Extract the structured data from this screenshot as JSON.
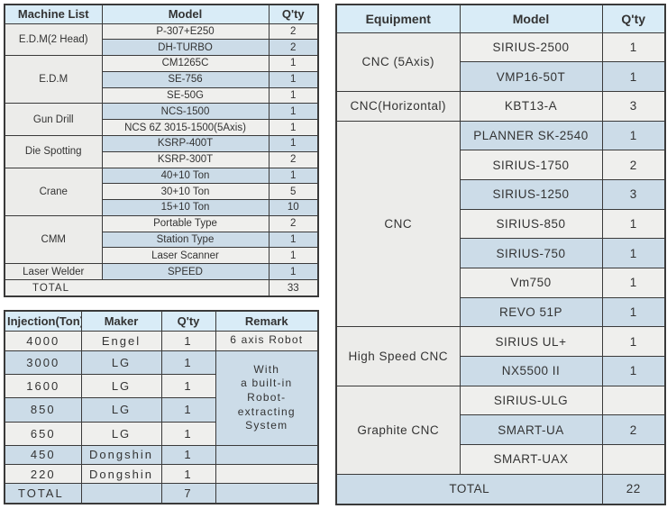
{
  "colors": {
    "page_bg": "#ffffff",
    "header_bg": "#d9ecf7",
    "row_gray": "#efefed",
    "row_blue": "#ccdce8",
    "group_bg": "#ececea",
    "border": "#3a3a3a",
    "text": "#333333"
  },
  "machine_list_table": {
    "headers": [
      "Machine List",
      "Model",
      "Q'ty"
    ],
    "groups": [
      {
        "name": "E.D.M(2 Head)",
        "rows": [
          [
            "P-307+E250",
            "2"
          ],
          [
            "DH-TURBO",
            "2"
          ]
        ]
      },
      {
        "name": "E.D.M",
        "rows": [
          [
            "CM1265C",
            "1"
          ],
          [
            "SE-756",
            "1"
          ],
          [
            "SE-50G",
            "1"
          ]
        ]
      },
      {
        "name": "Gun Drill",
        "rows": [
          [
            "NCS-1500",
            "1"
          ],
          [
            "NCS 6Z 3015-1500(5Axis)",
            "1"
          ]
        ]
      },
      {
        "name": "Die Spotting",
        "rows": [
          [
            "KSRP-400T",
            "1"
          ],
          [
            "KSRP-300T",
            "2"
          ]
        ]
      },
      {
        "name": "Crane",
        "rows": [
          [
            "40+10 Ton",
            "1"
          ],
          [
            "30+10 Ton",
            "5"
          ],
          [
            "15+10 Ton",
            "10"
          ]
        ]
      },
      {
        "name": "CMM",
        "rows": [
          [
            "Portable Type",
            "2"
          ],
          [
            "Station Type",
            "1"
          ],
          [
            "Laser Scanner",
            "1"
          ]
        ]
      },
      {
        "name": "Laser Welder",
        "rows": [
          [
            "SPEED",
            "1"
          ]
        ]
      }
    ],
    "total_label": "TOTAL",
    "total_qty": "33"
  },
  "injection_table": {
    "headers": [
      "Injection(Ton)",
      "Maker",
      "Q'ty",
      "Remark"
    ],
    "rows": [
      {
        "ton": "4000",
        "maker": "Engel",
        "qty": "1",
        "remark": "6 axis Robot"
      },
      {
        "ton": "3000",
        "maker": "LG",
        "qty": "1",
        "remark": "With\na built-in\nRobot-\nextracting\nSystem",
        "remark_rowspan": 4
      },
      {
        "ton": "1600",
        "maker": "LG",
        "qty": "1"
      },
      {
        "ton": "850",
        "maker": "LG",
        "qty": "1"
      },
      {
        "ton": "650",
        "maker": "LG",
        "qty": "1"
      },
      {
        "ton": "450",
        "maker": "Dongshin",
        "qty": "1",
        "remark": ""
      },
      {
        "ton": "220",
        "maker": "Dongshin",
        "qty": "1",
        "remark": ""
      }
    ],
    "total_label": "TOTAL",
    "total_maker": "",
    "total_qty": "7",
    "total_remark": ""
  },
  "equipment_table": {
    "headers": [
      "Equipment",
      "Model",
      "Q'ty"
    ],
    "groups": [
      {
        "name": "CNC (5Axis)",
        "rows": [
          [
            "SIRIUS-2500",
            "1"
          ],
          [
            "VMP16-50T",
            "1"
          ]
        ]
      },
      {
        "name": "CNC(Horizontal)",
        "rows": [
          [
            "KBT13-A",
            "3"
          ]
        ]
      },
      {
        "name": "CNC",
        "rows": [
          [
            "PLANNER SK-2540",
            "1"
          ],
          [
            "SIRIUS-1750",
            "2"
          ],
          [
            "SIRIUS-1250",
            "3"
          ],
          [
            "SIRIUS-850",
            "1"
          ],
          [
            "SIRIUS-750",
            "1"
          ],
          [
            "Vm750",
            "1"
          ],
          [
            "REVO 51P",
            "1"
          ]
        ]
      },
      {
        "name": "High Speed CNC",
        "rows": [
          [
            "SIRIUS UL+",
            "1"
          ],
          [
            "NX5500 II",
            "1"
          ]
        ]
      },
      {
        "name": "Graphite CNC",
        "rows": [
          [
            "SIRIUS-ULG",
            ""
          ],
          [
            "SMART-UA",
            "2"
          ],
          [
            "SMART-UAX",
            ""
          ]
        ]
      }
    ],
    "total_label": "TOTAL",
    "total_qty": "22"
  }
}
